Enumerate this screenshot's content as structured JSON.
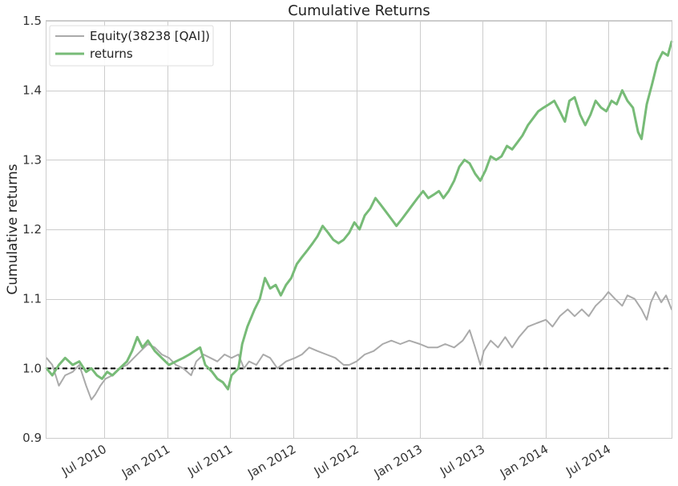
{
  "chart_data": {
    "type": "line",
    "title": "Cumulative Returns",
    "xlabel": "",
    "ylabel": "Cumulative returns",
    "xlim": [
      "2010-01-15",
      "2014-12-31"
    ],
    "ylim": [
      0.9,
      1.5
    ],
    "x_ticks": [
      "2010-07-01",
      "2011-01-01",
      "2011-07-01",
      "2012-01-01",
      "2012-07-01",
      "2013-01-01",
      "2013-07-01",
      "2014-01-01",
      "2014-07-01"
    ],
    "x_tick_labels": [
      "Jul 2010",
      "Jan 2011",
      "Jul 2011",
      "Jan 2012",
      "Jul 2012",
      "Jan 2013",
      "Jul 2013",
      "Jan 2014",
      "Jul 2014"
    ],
    "y_ticks": [
      0.9,
      1.0,
      1.1,
      1.2,
      1.3,
      1.4,
      1.5
    ],
    "y_tick_labels": [
      "0.9",
      "1.0",
      "1.1",
      "1.2",
      "1.3",
      "1.4",
      "1.5"
    ],
    "grid": true,
    "legend_position": "top-left",
    "reference_line": {
      "y": 1.0,
      "style": "dashed",
      "color": "#000000"
    },
    "series": [
      {
        "name": "Equity(38238 [QAI])",
        "color": "#aaaaaa",
        "points": [
          [
            "2010-01-15",
            1.015
          ],
          [
            "2010-02-01",
            1.005
          ],
          [
            "2010-02-20",
            0.975
          ],
          [
            "2010-03-10",
            0.99
          ],
          [
            "2010-04-01",
            0.995
          ],
          [
            "2010-04-20",
            1.005
          ],
          [
            "2010-05-10",
            0.975
          ],
          [
            "2010-05-25",
            0.955
          ],
          [
            "2010-06-05",
            0.962
          ],
          [
            "2010-06-20",
            0.975
          ],
          [
            "2010-07-05",
            0.985
          ],
          [
            "2010-07-25",
            0.99
          ],
          [
            "2010-08-15",
            1.0
          ],
          [
            "2010-09-05",
            1.005
          ],
          [
            "2010-09-25",
            1.015
          ],
          [
            "2010-10-15",
            1.025
          ],
          [
            "2010-11-05",
            1.035
          ],
          [
            "2010-11-25",
            1.03
          ],
          [
            "2010-12-15",
            1.02
          ],
          [
            "2011-01-05",
            1.015
          ],
          [
            "2011-01-25",
            1.005
          ],
          [
            "2011-02-15",
            1.0
          ],
          [
            "2011-03-10",
            0.99
          ],
          [
            "2011-03-25",
            1.01
          ],
          [
            "2011-04-15",
            1.02
          ],
          [
            "2011-05-05",
            1.015
          ],
          [
            "2011-05-25",
            1.01
          ],
          [
            "2011-06-15",
            1.02
          ],
          [
            "2011-07-05",
            1.015
          ],
          [
            "2011-07-25",
            1.02
          ],
          [
            "2011-08-10",
            1.0
          ],
          [
            "2011-08-25",
            1.01
          ],
          [
            "2011-09-15",
            1.005
          ],
          [
            "2011-10-05",
            1.02
          ],
          [
            "2011-10-25",
            1.015
          ],
          [
            "2011-11-15",
            1.0
          ],
          [
            "2011-12-10",
            1.01
          ],
          [
            "2012-01-05",
            1.015
          ],
          [
            "2012-01-25",
            1.02
          ],
          [
            "2012-02-15",
            1.03
          ],
          [
            "2012-03-10",
            1.025
          ],
          [
            "2012-04-05",
            1.02
          ],
          [
            "2012-05-01",
            1.015
          ],
          [
            "2012-05-25",
            1.005
          ],
          [
            "2012-06-10",
            1.005
          ],
          [
            "2012-07-01",
            1.01
          ],
          [
            "2012-07-25",
            1.02
          ],
          [
            "2012-08-20",
            1.025
          ],
          [
            "2012-09-15",
            1.035
          ],
          [
            "2012-10-10",
            1.04
          ],
          [
            "2012-11-05",
            1.035
          ],
          [
            "2012-12-01",
            1.04
          ],
          [
            "2013-01-01",
            1.035
          ],
          [
            "2013-01-25",
            1.03
          ],
          [
            "2013-02-20",
            1.03
          ],
          [
            "2013-03-15",
            1.035
          ],
          [
            "2013-04-10",
            1.03
          ],
          [
            "2013-05-05",
            1.04
          ],
          [
            "2013-05-25",
            1.055
          ],
          [
            "2013-06-10",
            1.03
          ],
          [
            "2013-06-25",
            1.005
          ],
          [
            "2013-07-05",
            1.025
          ],
          [
            "2013-07-25",
            1.04
          ],
          [
            "2013-08-15",
            1.03
          ],
          [
            "2013-09-05",
            1.045
          ],
          [
            "2013-09-25",
            1.03
          ],
          [
            "2013-10-15",
            1.045
          ],
          [
            "2013-11-10",
            1.06
          ],
          [
            "2013-12-05",
            1.065
          ],
          [
            "2014-01-01",
            1.07
          ],
          [
            "2014-01-20",
            1.06
          ],
          [
            "2014-02-10",
            1.075
          ],
          [
            "2014-03-05",
            1.085
          ],
          [
            "2014-03-25",
            1.075
          ],
          [
            "2014-04-15",
            1.085
          ],
          [
            "2014-05-05",
            1.075
          ],
          [
            "2014-05-25",
            1.09
          ],
          [
            "2014-06-15",
            1.1
          ],
          [
            "2014-07-01",
            1.11
          ],
          [
            "2014-07-20",
            1.1
          ],
          [
            "2014-08-10",
            1.09
          ],
          [
            "2014-08-25",
            1.105
          ],
          [
            "2014-09-15",
            1.1
          ],
          [
            "2014-10-05",
            1.085
          ],
          [
            "2014-10-20",
            1.07
          ],
          [
            "2014-11-01",
            1.095
          ],
          [
            "2014-11-15",
            1.11
          ],
          [
            "2014-12-01",
            1.095
          ],
          [
            "2014-12-15",
            1.105
          ],
          [
            "2014-12-31",
            1.085
          ]
        ]
      },
      {
        "name": "returns",
        "color": "#77bb77",
        "points": [
          [
            "2010-01-15",
            1.0
          ],
          [
            "2010-02-01",
            0.99
          ],
          [
            "2010-02-20",
            1.005
          ],
          [
            "2010-03-10",
            1.015
          ],
          [
            "2010-04-01",
            1.005
          ],
          [
            "2010-04-20",
            1.01
          ],
          [
            "2010-05-10",
            0.995
          ],
          [
            "2010-05-25",
            1.0
          ],
          [
            "2010-06-10",
            0.99
          ],
          [
            "2010-06-25",
            0.985
          ],
          [
            "2010-07-10",
            0.995
          ],
          [
            "2010-07-25",
            0.99
          ],
          [
            "2010-08-15",
            1.0
          ],
          [
            "2010-09-05",
            1.01
          ],
          [
            "2010-09-20",
            1.025
          ],
          [
            "2010-10-05",
            1.045
          ],
          [
            "2010-10-20",
            1.03
          ],
          [
            "2010-11-05",
            1.04
          ],
          [
            "2010-11-25",
            1.025
          ],
          [
            "2010-12-15",
            1.015
          ],
          [
            "2011-01-05",
            1.005
          ],
          [
            "2011-01-25",
            1.01
          ],
          [
            "2011-02-15",
            1.015
          ],
          [
            "2011-03-05",
            1.02
          ],
          [
            "2011-03-20",
            1.025
          ],
          [
            "2011-04-05",
            1.03
          ],
          [
            "2011-04-20",
            1.005
          ],
          [
            "2011-05-10",
            0.995
          ],
          [
            "2011-05-25",
            0.985
          ],
          [
            "2011-06-10",
            0.98
          ],
          [
            "2011-06-25",
            0.97
          ],
          [
            "2011-07-05",
            0.99
          ],
          [
            "2011-07-25",
            1.0
          ],
          [
            "2011-08-05",
            1.035
          ],
          [
            "2011-08-20",
            1.06
          ],
          [
            "2011-09-10",
            1.085
          ],
          [
            "2011-09-25",
            1.1
          ],
          [
            "2011-10-10",
            1.13
          ],
          [
            "2011-10-25",
            1.115
          ],
          [
            "2011-11-10",
            1.12
          ],
          [
            "2011-11-25",
            1.105
          ],
          [
            "2011-12-10",
            1.12
          ],
          [
            "2011-12-25",
            1.13
          ],
          [
            "2012-01-10",
            1.15
          ],
          [
            "2012-01-25",
            1.16
          ],
          [
            "2012-02-10",
            1.17
          ],
          [
            "2012-02-25",
            1.18
          ],
          [
            "2012-03-10",
            1.19
          ],
          [
            "2012-03-25",
            1.205
          ],
          [
            "2012-04-10",
            1.195
          ],
          [
            "2012-04-25",
            1.185
          ],
          [
            "2012-05-10",
            1.18
          ],
          [
            "2012-05-25",
            1.185
          ],
          [
            "2012-06-10",
            1.195
          ],
          [
            "2012-06-25",
            1.21
          ],
          [
            "2012-07-10",
            1.2
          ],
          [
            "2012-07-25",
            1.22
          ],
          [
            "2012-08-10",
            1.23
          ],
          [
            "2012-08-25",
            1.245
          ],
          [
            "2012-09-10",
            1.235
          ],
          [
            "2012-09-25",
            1.225
          ],
          [
            "2012-10-10",
            1.215
          ],
          [
            "2012-10-25",
            1.205
          ],
          [
            "2012-11-10",
            1.215
          ],
          [
            "2012-11-25",
            1.225
          ],
          [
            "2012-12-10",
            1.235
          ],
          [
            "2012-12-25",
            1.245
          ],
          [
            "2013-01-10",
            1.255
          ],
          [
            "2013-01-25",
            1.245
          ],
          [
            "2013-02-10",
            1.25
          ],
          [
            "2013-02-25",
            1.255
          ],
          [
            "2013-03-10",
            1.245
          ],
          [
            "2013-03-25",
            1.255
          ],
          [
            "2013-04-10",
            1.27
          ],
          [
            "2013-04-25",
            1.29
          ],
          [
            "2013-05-10",
            1.3
          ],
          [
            "2013-05-25",
            1.295
          ],
          [
            "2013-06-10",
            1.28
          ],
          [
            "2013-06-25",
            1.27
          ],
          [
            "2013-07-10",
            1.285
          ],
          [
            "2013-07-25",
            1.305
          ],
          [
            "2013-08-10",
            1.3
          ],
          [
            "2013-08-25",
            1.305
          ],
          [
            "2013-09-10",
            1.32
          ],
          [
            "2013-09-25",
            1.315
          ],
          [
            "2013-10-10",
            1.325
          ],
          [
            "2013-10-25",
            1.335
          ],
          [
            "2013-11-10",
            1.35
          ],
          [
            "2013-11-25",
            1.36
          ],
          [
            "2013-12-10",
            1.37
          ],
          [
            "2013-12-25",
            1.375
          ],
          [
            "2014-01-10",
            1.38
          ],
          [
            "2014-01-25",
            1.385
          ],
          [
            "2014-02-10",
            1.37
          ],
          [
            "2014-02-25",
            1.355
          ],
          [
            "2014-03-10",
            1.385
          ],
          [
            "2014-03-25",
            1.39
          ],
          [
            "2014-04-10",
            1.365
          ],
          [
            "2014-04-25",
            1.35
          ],
          [
            "2014-05-10",
            1.365
          ],
          [
            "2014-05-25",
            1.385
          ],
          [
            "2014-06-10",
            1.375
          ],
          [
            "2014-06-25",
            1.37
          ],
          [
            "2014-07-10",
            1.385
          ],
          [
            "2014-07-25",
            1.38
          ],
          [
            "2014-08-10",
            1.4
          ],
          [
            "2014-08-25",
            1.385
          ],
          [
            "2014-09-10",
            1.375
          ],
          [
            "2014-09-25",
            1.34
          ],
          [
            "2014-10-05",
            1.33
          ],
          [
            "2014-10-20",
            1.38
          ],
          [
            "2014-11-05",
            1.41
          ],
          [
            "2014-11-20",
            1.44
          ],
          [
            "2014-12-05",
            1.455
          ],
          [
            "2014-12-20",
            1.45
          ],
          [
            "2014-12-31",
            1.47
          ]
        ]
      }
    ]
  }
}
